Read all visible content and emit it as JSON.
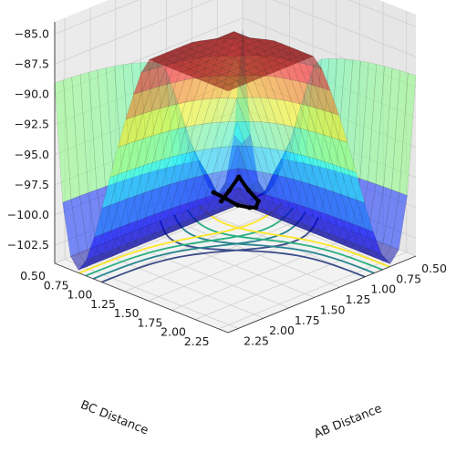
{
  "chart_data": {
    "type": "surface3d",
    "title": "",
    "xlabel": "AB Distance",
    "ylabel": "BC Distance",
    "zlabel": "",
    "x_ticks": [
      "0.50",
      "0.75",
      "1.00",
      "1.25",
      "1.50",
      "1.75",
      "2.00",
      "2.25"
    ],
    "y_ticks": [
      "0.50",
      "0.75",
      "1.00",
      "1.25",
      "1.50",
      "1.75",
      "2.00",
      "2.25"
    ],
    "z_ticks": [
      "−85.0",
      "−87.5",
      "−90.0",
      "−92.5",
      "−95.0",
      "−97.5",
      "−100.0",
      "−102.5"
    ],
    "x_range": [
      0.5,
      2.35
    ],
    "y_range": [
      0.5,
      2.35
    ],
    "z_range": [
      -104,
      -84
    ],
    "colormap": "jet",
    "surface_alpha": 0.5,
    "contour_levels": [
      -104,
      -103.3,
      -102.6,
      -101.9
    ],
    "contour_colors": [
      "#3d4d8a",
      "#27848f",
      "#2ab07f",
      "#fde725"
    ],
    "trajectory": {
      "color": "#000000",
      "points": [
        {
          "x": 0.74,
          "y": 0.45
        },
        {
          "x": 0.76,
          "y": 0.6
        },
        {
          "x": 0.78,
          "y": 0.75
        },
        {
          "x": 0.8,
          "y": 0.9
        },
        {
          "x": 0.83,
          "y": 1.0
        },
        {
          "x": 0.88,
          "y": 1.08
        },
        {
          "x": 0.92,
          "y": 1.02
        },
        {
          "x": 0.97,
          "y": 0.97
        },
        {
          "x": 1.02,
          "y": 0.92
        },
        {
          "x": 1.06,
          "y": 0.88
        }
      ]
    }
  }
}
